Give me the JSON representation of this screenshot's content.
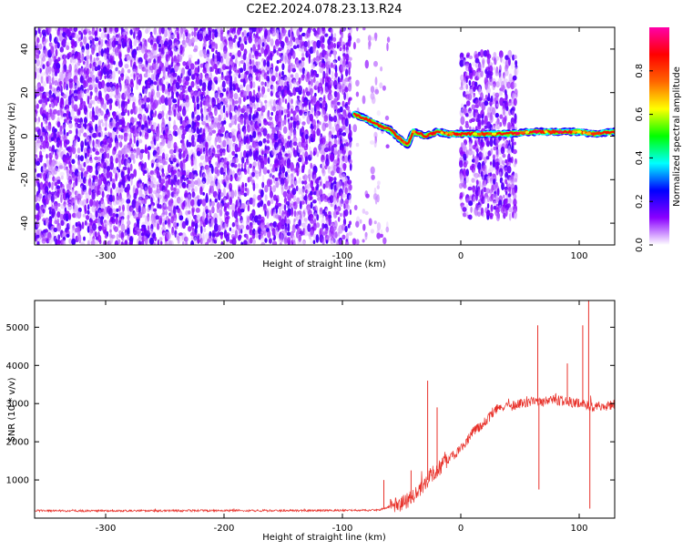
{
  "title": "C2E2.2024.078.23.13.R24",
  "colors": {
    "snr_line": "#e8312a",
    "points": "#7a1fff",
    "axis": "#000000"
  },
  "chart_data": [
    {
      "type": "heatmap",
      "title": "C2E2.2024.078.23.13.R24",
      "xlabel": "Height of straight line (km)",
      "ylabel": "Frequency (Hz)",
      "xlim": [
        -360,
        130
      ],
      "ylim": [
        -50,
        50
      ],
      "x_ticks": [
        "-300",
        "-200",
        "-100",
        "0",
        "100"
      ],
      "y_ticks": [
        "-40",
        "-20",
        "0",
        "20",
        "40"
      ],
      "colorbar": {
        "label": "Normalized spectral amplitude",
        "range": [
          0,
          1
        ],
        "ticks": [
          "0.0",
          "0.2",
          "0.4",
          "0.6",
          "0.8"
        ],
        "colormap": [
          "#ffffff",
          "#8a00ff",
          "#0000ff",
          "#00ffff",
          "#00ff00",
          "#ffff00",
          "#ff6600",
          "#ff0000",
          "#ff00aa"
        ]
      },
      "regions": [
        {
          "x_range": [
            -360,
            -92
          ],
          "freq_range": [
            -50,
            50
          ],
          "level": 0.25
        },
        {
          "x_range": [
            -90,
            -60
          ],
          "freq_range": [
            -50,
            50
          ],
          "level": 0.05
        },
        {
          "x_range": [
            0,
            48
          ],
          "freq_range": [
            -38,
            38
          ],
          "level": 0.2
        }
      ],
      "ridge": {
        "x": [
          -90,
          -80,
          -70,
          -60,
          -50,
          -45,
          -40,
          -30,
          -20,
          -10,
          0,
          20,
          40,
          60,
          80,
          100,
          110,
          130
        ],
        "freq": [
          10,
          8,
          5,
          3,
          -2,
          -4,
          2,
          0,
          2,
          1,
          1,
          1,
          1,
          2,
          2,
          2,
          1,
          2
        ]
      },
      "grid": false
    },
    {
      "type": "line",
      "xlabel": "Height of straight line (km)",
      "ylabel": "SNR (10 * v/v)",
      "xlim": [
        -360,
        130
      ],
      "ylim": [
        0,
        5700
      ],
      "x_ticks": [
        "-300",
        "-200",
        "-100",
        "0",
        "100"
      ],
      "y_ticks": [
        "1000",
        "2000",
        "3000",
        "4000",
        "5000"
      ],
      "series": [
        {
          "x": [
            -360,
            -100,
            -70,
            -50,
            -40,
            -30,
            -25,
            -20,
            -10,
            0,
            10,
            20,
            30,
            40,
            50,
            60,
            65,
            70,
            80,
            90,
            100,
            105,
            110,
            115,
            120,
            130
          ],
          "y": [
            190,
            200,
            210,
            380,
            550,
            900,
            1150,
            1250,
            1550,
            1800,
            2250,
            2500,
            2850,
            2900,
            3000,
            3050,
            3000,
            3050,
            3100,
            3050,
            3000,
            3000,
            2900,
            2950,
            2900,
            3000
          ]
        }
      ],
      "spikes": [
        {
          "x": -65,
          "y": 1000
        },
        {
          "x": -42,
          "y": 1250
        },
        {
          "x": -28,
          "y": 3600
        },
        {
          "x": -20,
          "y": 2900
        },
        {
          "x": 65,
          "y": 5050
        },
        {
          "x": 66,
          "y": 750
        },
        {
          "x": 90,
          "y": 4050
        },
        {
          "x": 103,
          "y": 5050
        },
        {
          "x": 108,
          "y": 5700
        },
        {
          "x": 109,
          "y": 250
        }
      ],
      "grid": false
    }
  ]
}
